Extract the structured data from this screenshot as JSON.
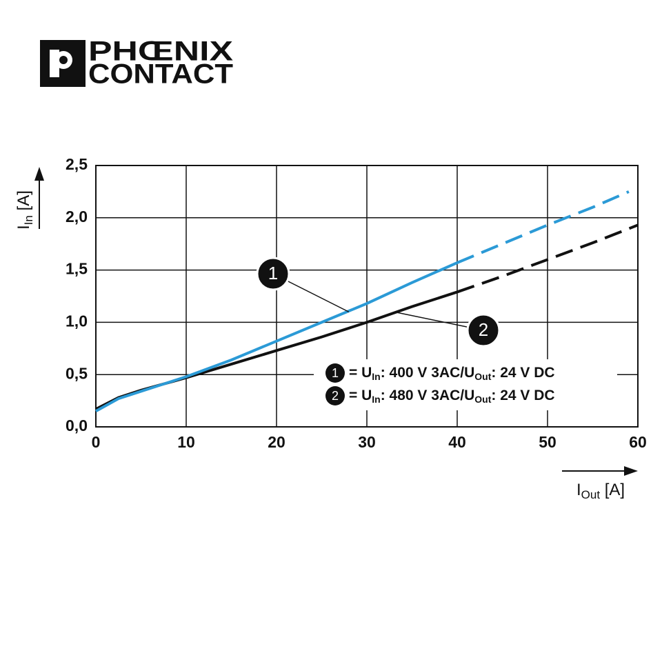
{
  "logo": {
    "line1": "PHŒNIX",
    "line2": "CONTACT"
  },
  "chart_data": {
    "type": "line",
    "y_label": [
      "I",
      "In",
      " [A]"
    ],
    "x_label": [
      "I",
      "Out",
      " [A]"
    ],
    "xlim": [
      0,
      60
    ],
    "xticks": [
      0,
      10,
      20,
      30,
      40,
      50,
      60
    ],
    "ylim": [
      0,
      2.5
    ],
    "yticks": [
      {
        "value": 0,
        "label": "0,0"
      },
      {
        "value": 0.5,
        "label": "0,5"
      },
      {
        "value": 1,
        "label": "1,0"
      },
      {
        "value": 1.5,
        "label": "1,5"
      },
      {
        "value": 2,
        "label": "2,0"
      },
      {
        "value": 2.5,
        "label": "2,5"
      }
    ],
    "grid": true,
    "series": [
      {
        "marker": "1",
        "name": [
          "= U",
          "In",
          ": 400 V 3AC/U",
          "Out",
          ": 24 V DC"
        ],
        "color": "#2b9ad6",
        "dashed_from": 40,
        "x": [
          0,
          2.5,
          5,
          7.5,
          10,
          15,
          20,
          25,
          30,
          35,
          40,
          45,
          50,
          55,
          59
        ],
        "values": [
          0.15,
          0.27,
          0.34,
          0.41,
          0.48,
          0.64,
          0.82,
          1.0,
          1.18,
          1.38,
          1.57,
          1.75,
          1.93,
          2.1,
          2.25
        ]
      },
      {
        "marker": "2",
        "name": [
          "= U",
          "In",
          ": 480 V 3AC/U",
          "Out",
          ": 24 V DC"
        ],
        "color": "#111111",
        "dashed_from": 40,
        "x": [
          0,
          2.5,
          5,
          7.5,
          10,
          15,
          20,
          25,
          30,
          35,
          40,
          45,
          50,
          55,
          60
        ],
        "values": [
          0.17,
          0.28,
          0.35,
          0.41,
          0.47,
          0.6,
          0.73,
          0.86,
          1.0,
          1.15,
          1.29,
          1.44,
          1.6,
          1.76,
          1.93
        ]
      }
    ]
  }
}
